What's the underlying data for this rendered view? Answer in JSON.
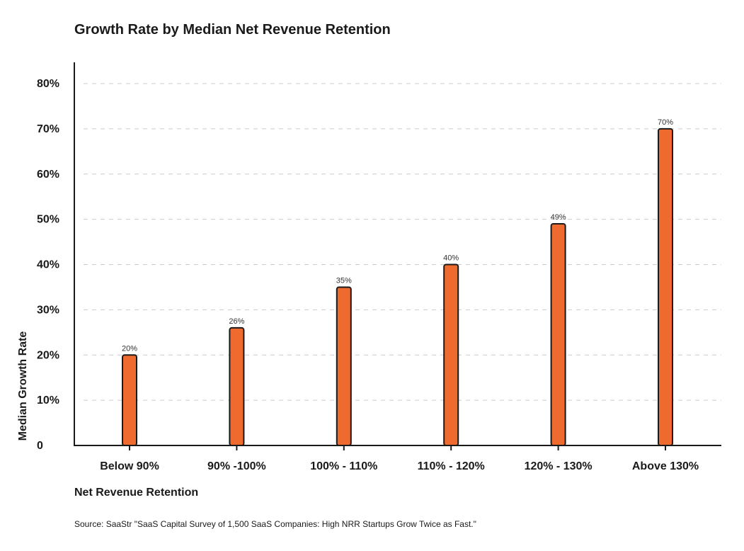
{
  "chart_data": {
    "type": "bar",
    "title": "Growth Rate by Median Net Revenue Retention",
    "xlabel": "Net Revenue Retention",
    "ylabel": "Median Growth Rate",
    "categories": [
      "Below 90%",
      "90% -100%",
      "100% - 110%",
      "110% - 120%",
      "120% - 130%",
      "Above 130%"
    ],
    "values": [
      20,
      26,
      35,
      40,
      49,
      70
    ],
    "data_labels": [
      "20%",
      "26%",
      "35%",
      "40%",
      "49%",
      "70%"
    ],
    "ylim": [
      0,
      80
    ],
    "yticks": [
      0,
      10,
      20,
      30,
      40,
      50,
      60,
      70,
      80
    ],
    "ytick_labels": [
      "0",
      "10%",
      "20%",
      "30%",
      "40%",
      "50%",
      "60%",
      "70%",
      "80%"
    ],
    "grid": true,
    "legend": "none",
    "bar_color": "#ee6a2f",
    "bar_stroke": "#1a1a1a",
    "grid_color": "#cccccc"
  },
  "source": "Source: SaaStr \"SaaS Capital Survey of 1,500 SaaS Companies: High NRR Startups Grow Twice as Fast.\""
}
